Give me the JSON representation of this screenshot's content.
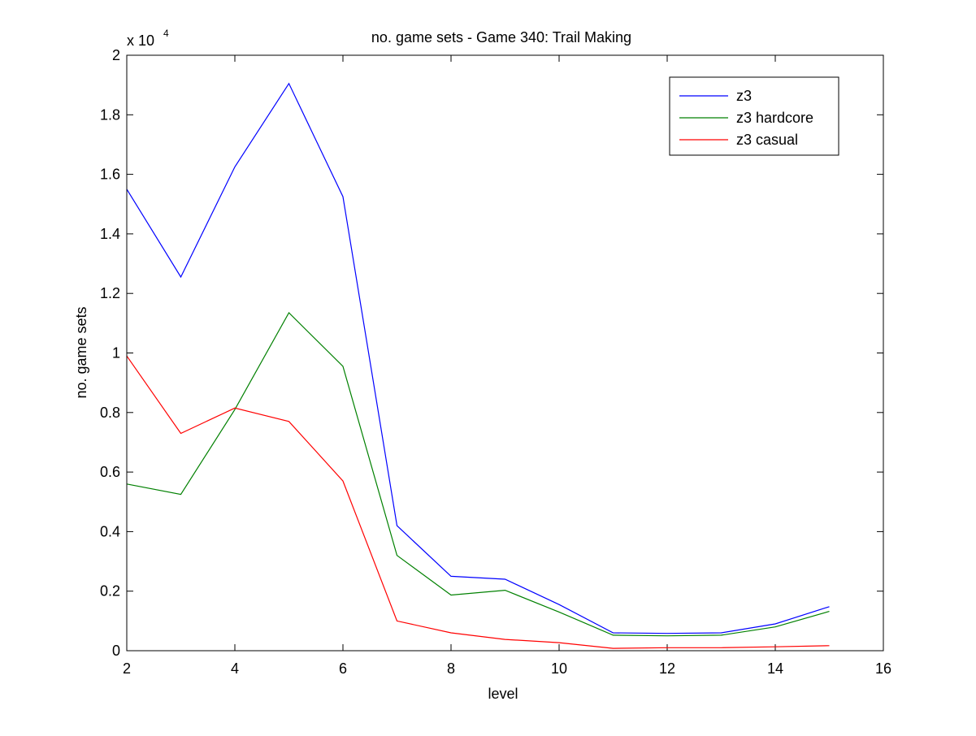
{
  "chart_data": {
    "type": "line",
    "title": "no. game sets - Game 340: Trail Making",
    "xlabel": "level",
    "ylabel": "no. game sets",
    "exponent_label": {
      "base": "x 10",
      "power": "4"
    },
    "xlim": [
      2,
      16
    ],
    "ylim": [
      0,
      2
    ],
    "xticks": [
      2,
      4,
      6,
      8,
      10,
      12,
      14,
      16
    ],
    "xtick_labels": [
      "2",
      "4",
      "6",
      "8",
      "10",
      "12",
      "14",
      "16"
    ],
    "yticks": [
      0,
      0.2,
      0.4,
      0.6,
      0.8,
      1.0,
      1.2,
      1.4,
      1.6,
      1.8,
      2.0
    ],
    "ytick_labels": [
      "0",
      "0.2",
      "0.4",
      "0.6",
      "0.8",
      "1",
      "1.2",
      "1.4",
      "1.6",
      "1.8",
      "2"
    ],
    "grid": false,
    "legend_position": "top-right",
    "x": [
      2,
      3,
      4,
      5,
      6,
      7,
      8,
      9,
      10,
      11,
      12,
      13,
      14,
      15
    ],
    "series": [
      {
        "name": "z3",
        "color": "#0000ff",
        "values": [
          1.55,
          1.255,
          1.625,
          1.905,
          1.525,
          0.42,
          0.25,
          0.24,
          0.155,
          0.06,
          0.058,
          0.06,
          0.09,
          0.148
        ]
      },
      {
        "name": "z3 hardcore",
        "color": "#008000",
        "values": [
          0.56,
          0.525,
          0.81,
          1.135,
          0.955,
          0.32,
          0.187,
          0.203,
          0.13,
          0.052,
          0.05,
          0.052,
          0.08,
          0.132
        ]
      },
      {
        "name": "z3 casual",
        "color": "#ff0000",
        "values": [
          0.99,
          0.73,
          0.815,
          0.77,
          0.57,
          0.1,
          0.06,
          0.038,
          0.027,
          0.008,
          0.01,
          0.01,
          0.013,
          0.017
        ]
      }
    ]
  }
}
